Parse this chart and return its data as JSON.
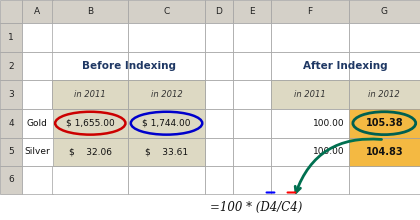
{
  "col_headers": [
    "A",
    "B",
    "C",
    "D",
    "E",
    "F",
    "G"
  ],
  "header_bg": "#d4d0c8",
  "cell_bg": "#ffffff",
  "tan_bg": "#ddd9c3",
  "orange_bg": "#f4b942",
  "grid_color": "#a0a0a0",
  "before_title": "Before Indexing",
  "after_title": "After Indexing",
  "col3_header": "in 2011",
  "col4_header": "in 2012",
  "col6_header": "in 2011",
  "col7_header": "in 2012",
  "row4_label": "Gold",
  "row5_label": "Silver",
  "c4": "$ 1,655.00",
  "d4": "$ 1,744.00",
  "c5": "$    32.06",
  "d5": "$    33.61",
  "f4": "100.00",
  "g4": "105.38",
  "f5": "100.00",
  "g5": "104.83",
  "formula": "=100 * (D4/C4)",
  "red_circle_color": "#cc0000",
  "blue_circle_color": "#0000cc",
  "teal_circle_color": "#006050",
  "arrow_color": "#007050",
  "bold_title_color": "#1f3864"
}
